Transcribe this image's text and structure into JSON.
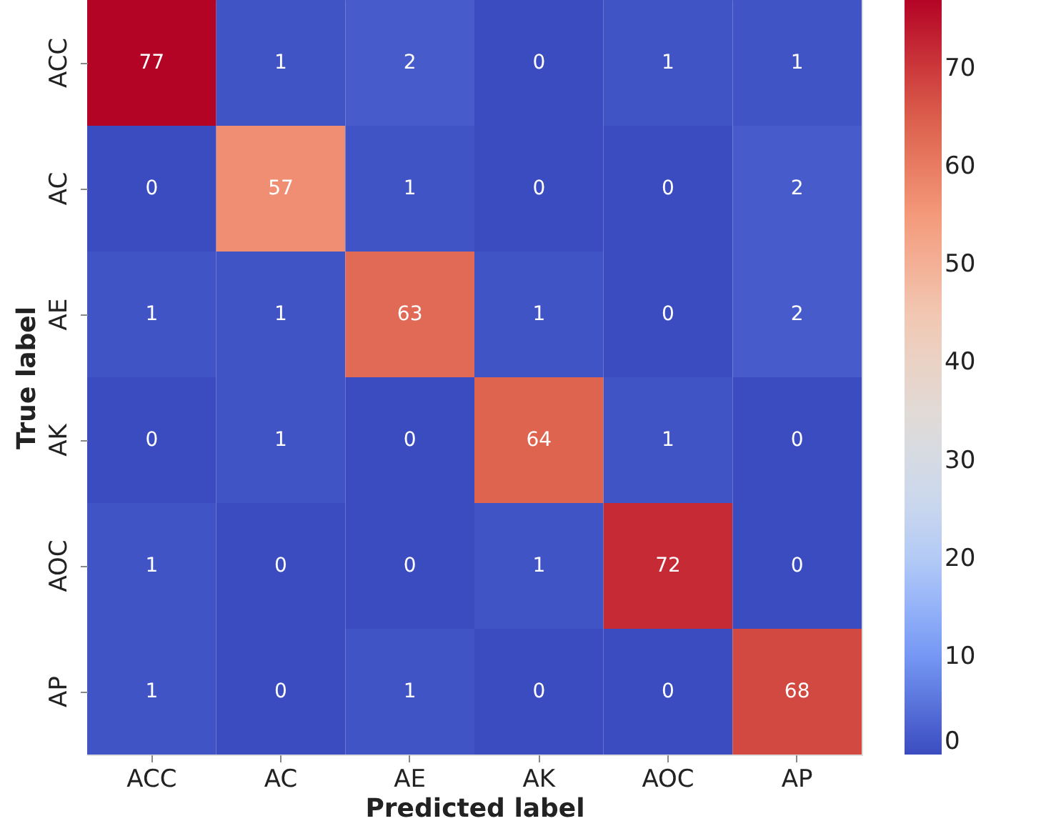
{
  "chart_data": {
    "type": "heatmap",
    "xlabel": "Predicted label",
    "ylabel": "True label",
    "categories": [
      "ACC",
      "AC",
      "AE",
      "AK",
      "AOC",
      "AP"
    ],
    "y_categories": [
      "ACC",
      "AC",
      "AE",
      "AK",
      "AOC",
      "AP"
    ],
    "cells": [
      [
        77,
        1,
        2,
        0,
        1,
        1
      ],
      [
        0,
        57,
        1,
        0,
        0,
        2
      ],
      [
        1,
        1,
        63,
        1,
        0,
        2
      ],
      [
        0,
        1,
        0,
        64,
        1,
        0
      ],
      [
        1,
        0,
        0,
        1,
        72,
        0
      ],
      [
        1,
        0,
        1,
        0,
        0,
        68
      ]
    ],
    "clim": [
      0,
      77
    ],
    "cticks": [
      0,
      10,
      20,
      30,
      40,
      50,
      60,
      70
    ],
    "data_labels": true
  }
}
